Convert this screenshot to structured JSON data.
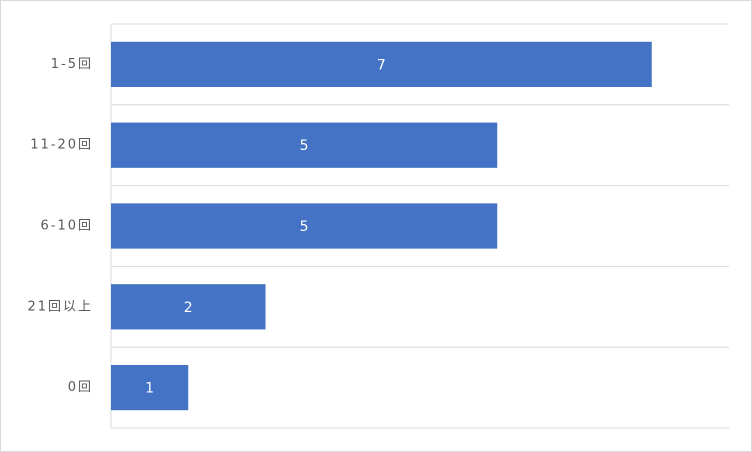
{
  "chart_data": {
    "type": "hbar",
    "categories": [
      "1-5回",
      "11-20回",
      "6-10回",
      "21回以上",
      "0回"
    ],
    "values": [
      7,
      5,
      5,
      2,
      1
    ],
    "color": "#4472c4",
    "xlim": [
      0,
      8
    ],
    "grid": true,
    "data_labels": true
  }
}
